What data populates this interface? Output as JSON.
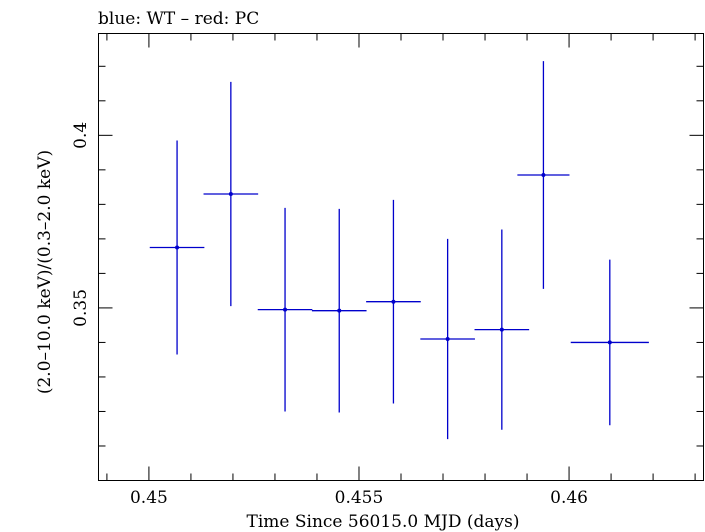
{
  "chart_data": {
    "type": "scatter",
    "title": "blue: WT – red: PC",
    "xlabel": "Time Since 56015.0 MJD (days)",
    "ylabel": "(2.0–10.0 keV)/(0.3–2.0 keV)",
    "xlim": [
      0.4488,
      0.4632
    ],
    "ylim": [
      0.3,
      0.4295
    ],
    "x_ticks": [
      {
        "value": 0.45,
        "label": "0.45"
      },
      {
        "value": 0.455,
        "label": "0.455"
      },
      {
        "value": 0.46,
        "label": "0.46"
      }
    ],
    "y_ticks": [
      {
        "value": 0.35,
        "label": "0.35"
      },
      {
        "value": 0.4,
        "label": "0.4"
      }
    ],
    "x_minor_step": 0.001,
    "y_minor_step": 0.01,
    "grid": false,
    "series": [
      {
        "color": "#0000cc",
        "points": [
          {
            "x": 0.45067,
            "xerr": 0.00065,
            "y": 0.3675,
            "yerr": 0.031
          },
          {
            "x": 0.45195,
            "xerr": 0.00065,
            "y": 0.383,
            "yerr": 0.0325
          },
          {
            "x": 0.45324,
            "xerr": 0.00065,
            "y": 0.3495,
            "yerr": 0.0295
          },
          {
            "x": 0.45453,
            "xerr": 0.00065,
            "y": 0.3492,
            "yerr": 0.0295
          },
          {
            "x": 0.45582,
            "xerr": 0.00065,
            "y": 0.3518,
            "yerr": 0.0295
          },
          {
            "x": 0.45711,
            "xerr": 0.00065,
            "y": 0.341,
            "yerr": 0.029
          },
          {
            "x": 0.4584,
            "xerr": 0.00065,
            "y": 0.3437,
            "yerr": 0.029
          },
          {
            "x": 0.45939,
            "xerr": 0.00062,
            "y": 0.3885,
            "yerr": 0.033
          },
          {
            "x": 0.46097,
            "xerr": 0.00093,
            "y": 0.34,
            "yerr": 0.024
          }
        ]
      }
    ]
  }
}
